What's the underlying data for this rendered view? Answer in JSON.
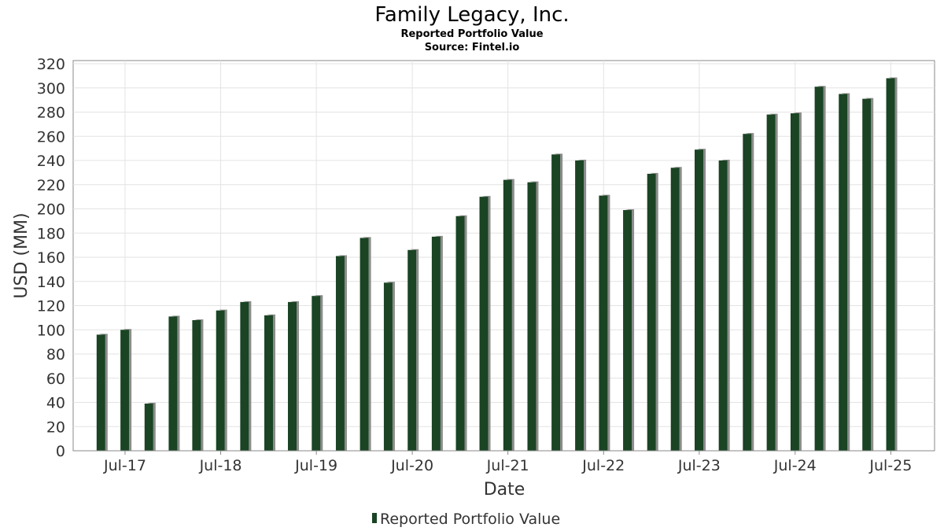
{
  "chart_data": {
    "type": "bar",
    "title": "Family Legacy, Inc.",
    "subtitle": "Reported Portfolio Value",
    "source": "Source: Fintel.io",
    "xlabel": "Date",
    "ylabel": "USD (MM)",
    "ylim": [
      0,
      320
    ],
    "yticks": [
      0,
      20,
      40,
      60,
      80,
      100,
      120,
      140,
      160,
      180,
      200,
      220,
      240,
      260,
      280,
      300,
      320
    ],
    "xticks": [
      "Jul-17",
      "Jul-18",
      "Jul-19",
      "Jul-20",
      "Jul-21",
      "Jul-22",
      "Jul-23",
      "Jul-24",
      "Jul-25"
    ],
    "x_range": [
      "2016-12-15",
      "2025-12-15"
    ],
    "grid": true,
    "legend_position": "bottom",
    "bar_color": "#1a4423",
    "bar_shadow_color": "#8c8c8c",
    "series": [
      {
        "name": "Reported Portfolio Value",
        "dates": [
          "2017-03-31",
          "2017-06-30",
          "2017-09-30",
          "2017-12-31",
          "2018-03-31",
          "2018-06-30",
          "2018-09-30",
          "2018-12-31",
          "2019-03-31",
          "2019-06-30",
          "2019-09-30",
          "2019-12-31",
          "2020-03-31",
          "2020-06-30",
          "2020-09-30",
          "2020-12-31",
          "2021-03-31",
          "2021-06-30",
          "2021-09-30",
          "2021-12-31",
          "2022-03-31",
          "2022-06-30",
          "2022-09-30",
          "2022-12-31",
          "2023-03-31",
          "2023-06-30",
          "2023-09-30",
          "2023-12-31",
          "2024-03-31",
          "2024-06-30",
          "2024-09-30",
          "2024-12-31",
          "2025-03-31",
          "2025-06-30"
        ],
        "values": [
          96,
          100,
          39,
          111,
          108,
          116,
          123,
          112,
          123,
          128,
          161,
          176,
          139,
          166,
          177,
          194,
          210,
          224,
          222,
          245,
          240,
          211,
          199,
          229,
          234,
          249,
          240,
          262,
          278,
          279,
          301,
          295,
          291,
          308
        ]
      }
    ]
  }
}
